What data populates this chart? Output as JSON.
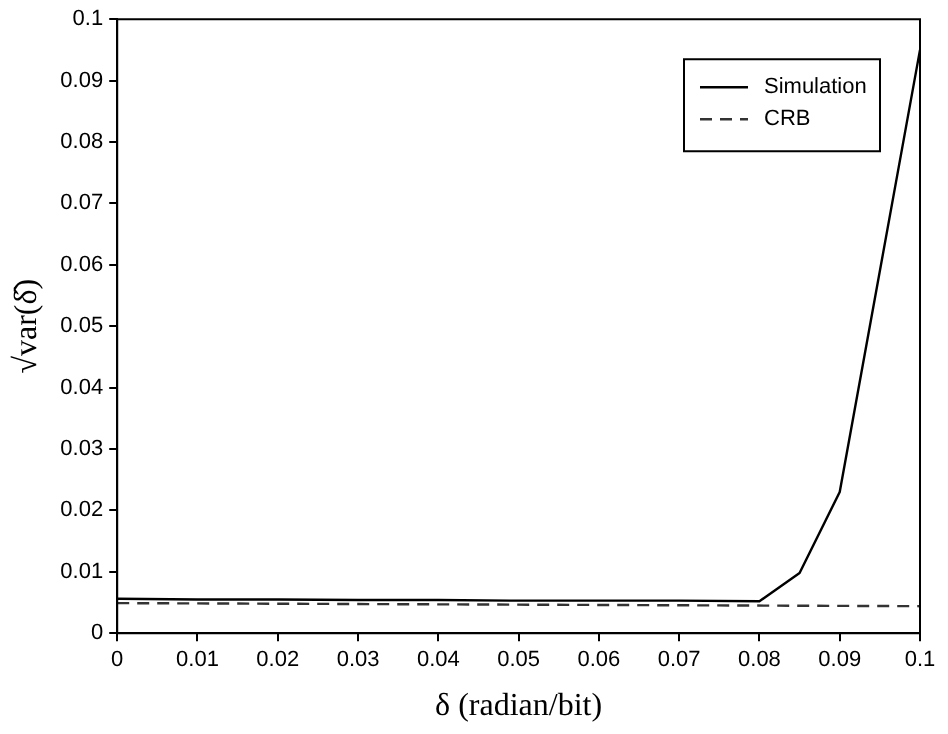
{
  "chart_data": {
    "type": "line",
    "xlabel": "δ (radian/bit)",
    "ylabel": "√var(δ̂)",
    "xlim": [
      0,
      0.1
    ],
    "xticks": [
      0,
      0.01,
      0.02,
      0.03,
      0.04,
      0.05,
      0.06,
      0.07,
      0.08,
      0.09,
      0.1
    ],
    "ylim": [
      0,
      0.1
    ],
    "yticks": [
      0,
      0.01,
      0.02,
      0.03,
      0.04,
      0.05,
      0.06,
      0.07,
      0.08,
      0.09,
      0.1
    ],
    "grid": false,
    "legend": "top right",
    "marker": "none",
    "series": [
      {
        "name": "Simulation",
        "color": "#000000",
        "line_style": "solid",
        "x": [
          0,
          0.01,
          0.02,
          0.03,
          0.04,
          0.05,
          0.06,
          0.07,
          0.08,
          0.085,
          0.09,
          0.1
        ],
        "values": [
          0.0056,
          0.0055,
          0.0055,
          0.0054,
          0.0054,
          0.0053,
          0.0053,
          0.0053,
          0.0052,
          0.0098,
          0.023,
          0.095
        ]
      },
      {
        "name": "CRB",
        "color": "#333333",
        "line_style": "dashed",
        "x": [
          0,
          0.1
        ],
        "values": [
          0.0049,
          0.0044
        ]
      }
    ]
  }
}
